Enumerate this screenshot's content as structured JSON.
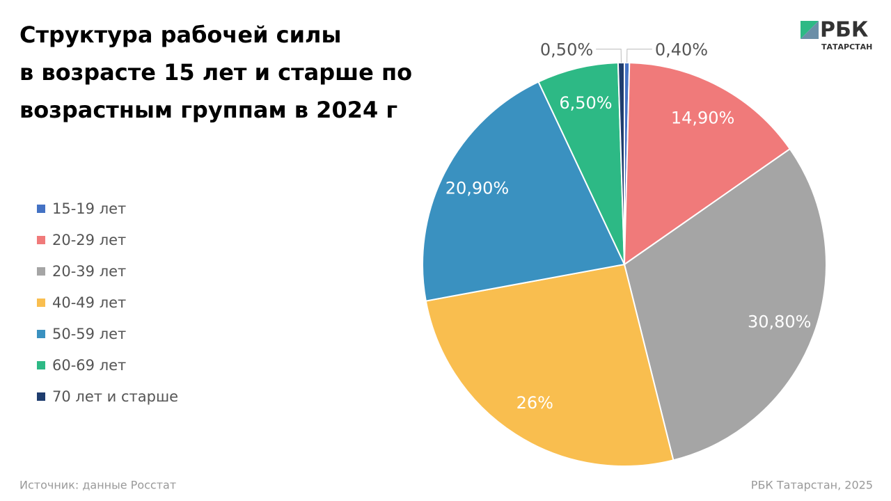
{
  "chart_data": {
    "type": "pie",
    "title": [
      "Структура рабочей силы",
      "в возрасте 15 лет и старше по",
      "возрастным группам в 2024 г"
    ],
    "categories": [
      "15-19 лет",
      "20-29 лет",
      "20-39 лет",
      "40-49 лет",
      "50-59 лет",
      "60-69 лет",
      "70 лет и старше"
    ],
    "values": [
      0.4,
      14.9,
      30.8,
      26,
      20.9,
      6.5,
      0.5
    ],
    "value_labels": [
      "0,40%",
      "14,90%",
      "30,80%",
      "26%",
      "20,90%",
      "6,50%",
      "0,50%"
    ],
    "colors": [
      "#4472c4",
      "#f07a7a",
      "#a5a5a5",
      "#f9be4f",
      "#3a91c0",
      "#2db985",
      "#1f3d6e"
    ],
    "legend": "left"
  },
  "source": "Источник: данные Росстат",
  "credit": "РБК Татарстан, 2025",
  "logo": {
    "name": "РБК",
    "region": "ТАТАРСТАН"
  }
}
